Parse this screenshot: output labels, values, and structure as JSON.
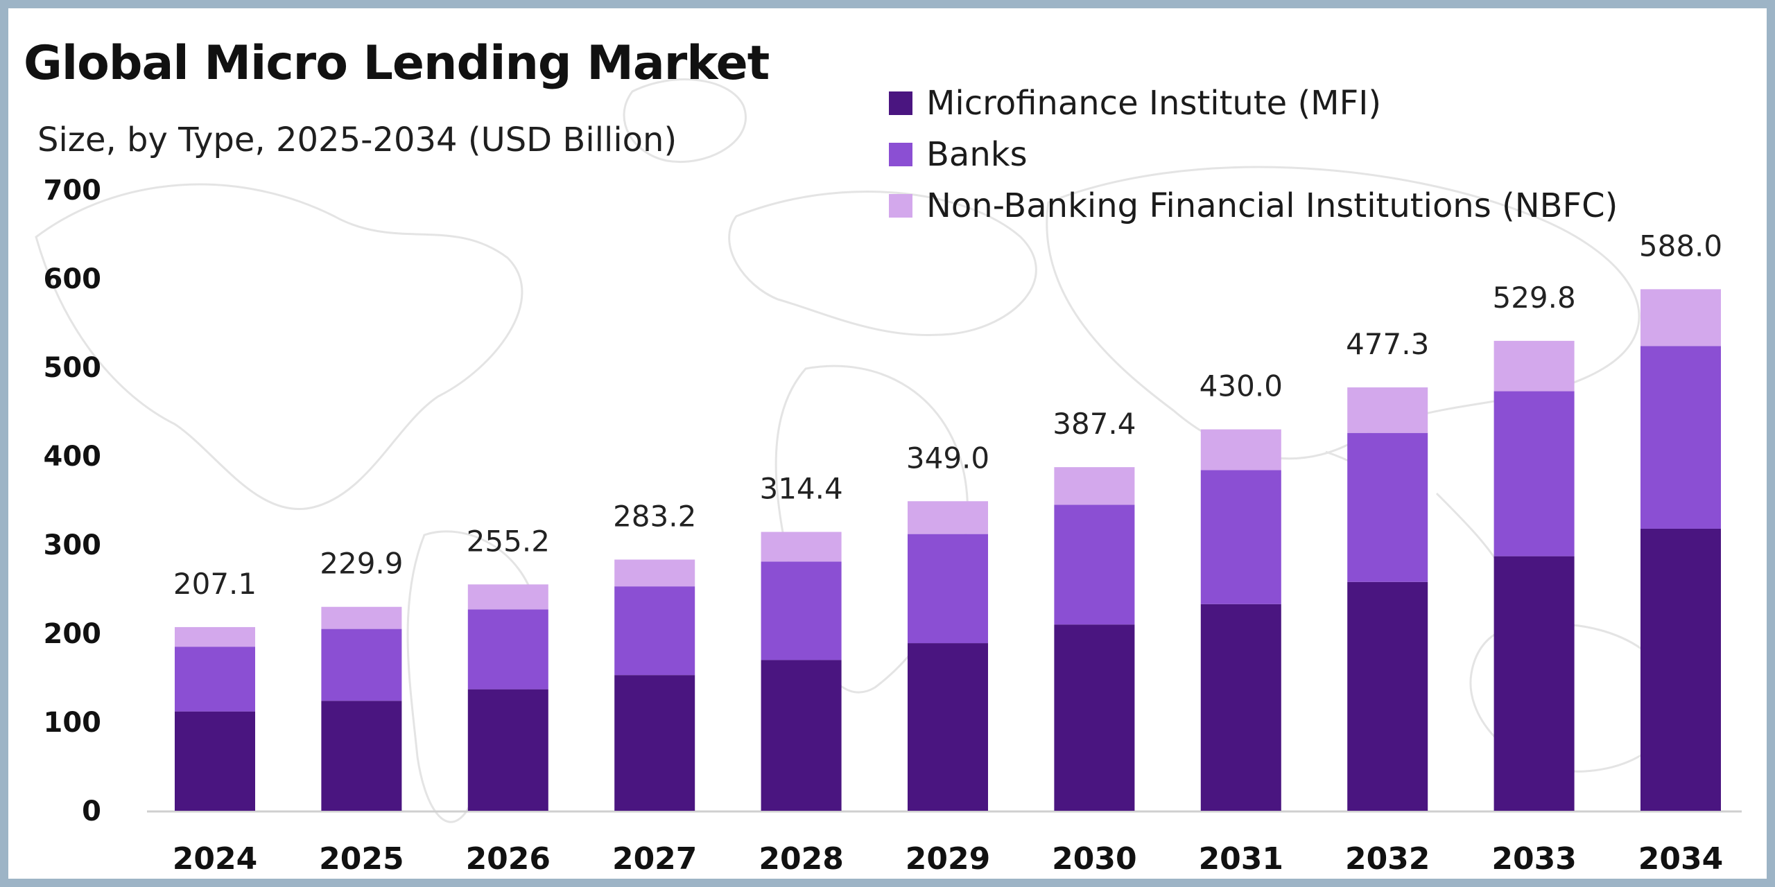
{
  "chart_data": {
    "type": "bar",
    "stacked": true,
    "title": "Global Micro Lending Market",
    "subtitle": "Size, by Type, 2025-2034 (USD Billion)",
    "categories": [
      "2024",
      "2025",
      "2026",
      "2027",
      "2028",
      "2029",
      "2030",
      "2031",
      "2032",
      "2033",
      "2034"
    ],
    "totals": [
      "207.1",
      "229.9",
      "255.2",
      "283.2",
      "314.4",
      "349.0",
      "387.4",
      "430.0",
      "477.3",
      "529.8",
      "588.0"
    ],
    "series": [
      {
        "name": "Microfinance Institute (MFI)",
        "color": "#4a1580",
        "values": [
          112,
          124,
          137,
          153,
          170,
          189,
          210,
          233,
          258,
          287,
          318
        ]
      },
      {
        "name": "Banks",
        "color": "#8b4fd3",
        "values": [
          73,
          81,
          90,
          100,
          111,
          123,
          135,
          151,
          168,
          186,
          206
        ]
      },
      {
        "name": "Non-Banking Financial Institutions (NBFC)",
        "color": "#d3a8ec",
        "values": [
          22.1,
          24.9,
          28.2,
          30.2,
          33.4,
          37.0,
          42.4,
          46.0,
          51.3,
          56.8,
          64.0
        ]
      }
    ],
    "yticks": [
      "0",
      "100",
      "200",
      "300",
      "400",
      "500",
      "600",
      "700"
    ],
    "ylim": [
      0,
      700
    ],
    "grid": false,
    "legend_position": "top-right"
  }
}
